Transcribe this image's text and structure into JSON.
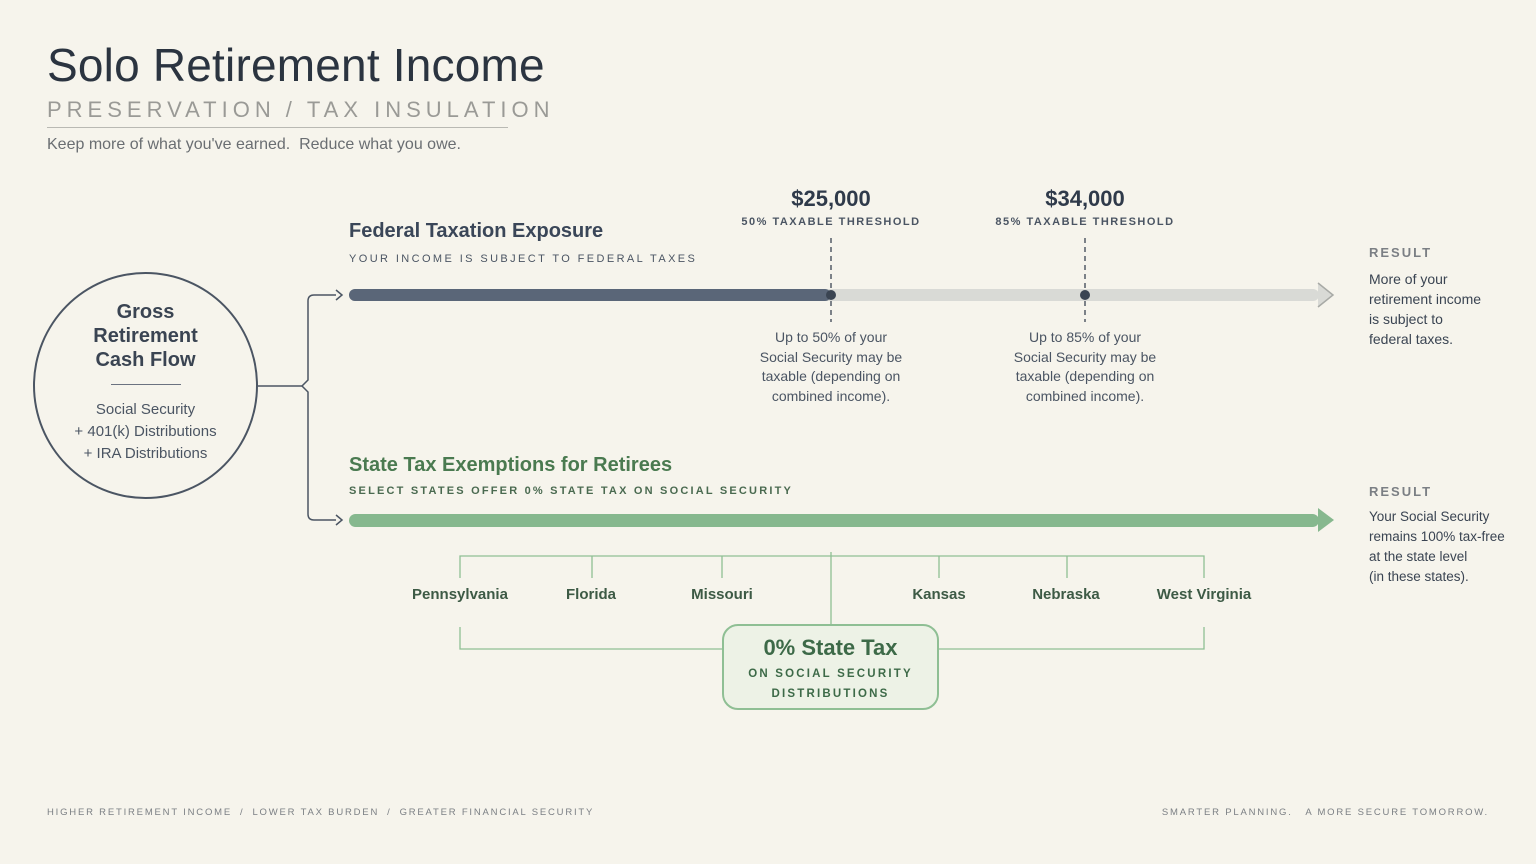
{
  "header": {
    "title": "Solo Retirement Income",
    "subtitle_left": "PRESERVATION",
    "subtitle_sep": "/",
    "subtitle_right": "TAX INSULATION",
    "tagline": "Keep more of what you've earned.  Reduce what you owe."
  },
  "source": {
    "title_line1": "Gross",
    "title_line2": "Retirement",
    "title_line3": "Cash Flow",
    "item1": "Social Security",
    "item2": "+ 401(k) Distributions",
    "item3": "+ IRA Distributions"
  },
  "federal": {
    "title": "Federal Taxation Exposure",
    "subtitle": "YOUR INCOME IS SUBJECT TO FEDERAL TAXES",
    "threshold1": {
      "amount": "$25,000",
      "label": "50% TAXABLE THRESHOLD",
      "note_lines": [
        "Up to 50% of your",
        "Social Security may be",
        "taxable (depending on",
        "combined income)."
      ]
    },
    "threshold2": {
      "amount": "$34,000",
      "label": "85% TAXABLE THRESHOLD",
      "note_lines": [
        "Up to 85% of your",
        "Social Security may be",
        "taxable (depending on",
        "combined income)."
      ]
    },
    "result_heading": "RESULT",
    "result_lines": [
      "More of your",
      "retirement income",
      "is subject to",
      "federal taxes."
    ]
  },
  "state": {
    "title": "State Tax Exemptions for Retirees",
    "subtitle": "SELECT STATES OFFER 0% STATE TAX ON SOCIAL SECURITY",
    "states": [
      "Pennsylvania",
      "Florida",
      "Missouri",
      "Kansas",
      "Nebraska",
      "West Virginia"
    ],
    "box_title": "0% State Tax",
    "box_sub1": "ON SOCIAL SECURITY",
    "box_sub2": "DISTRIBUTIONS",
    "result_heading": "RESULT",
    "result_lines": [
      "Your Social Security",
      "remains 100% tax-free",
      "at the state level",
      "(in these states)."
    ]
  },
  "footer": {
    "left1": "HIGHER RETIREMENT INCOME",
    "left2": "LOWER TAX BURDEN",
    "left3": "GREATER FINANCIAL SECURITY",
    "sep": "/",
    "right": "SMARTER PLANNING.   A MORE SECURE TOMORROW."
  },
  "colors": {
    "background": "#f6f4ec",
    "federal_bar": "#5a6678",
    "federal_track": "#d9dad6",
    "state_bar": "#86b88e",
    "connector": "#4b5563"
  }
}
